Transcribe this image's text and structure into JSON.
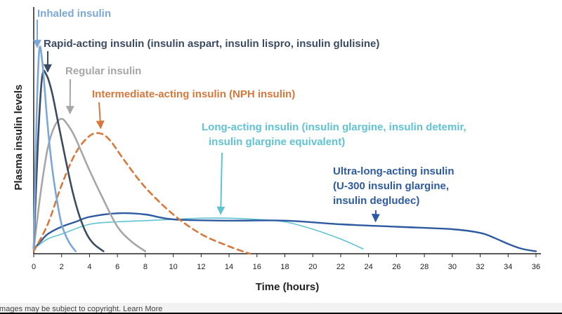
{
  "caption": "Images may be subject to copyright. Learn More",
  "chart_data": {
    "type": "line",
    "title": "",
    "xlabel": "Time (hours)",
    "ylabel": "Plasma insulin levels",
    "xlim": [
      0,
      36
    ],
    "ylim": [
      0,
      1
    ],
    "grid": false,
    "x_ticks": [
      0,
      2,
      4,
      6,
      8,
      10,
      12,
      14,
      16,
      18,
      20,
      22,
      24,
      26,
      28,
      30,
      32,
      34,
      36
    ],
    "colors": {
      "inhaled": "#7ba7d9",
      "rapid": "#3b4a63",
      "regular": "#a6a6a6",
      "nph": "#d9773a",
      "long": "#5fc3d4",
      "ultra": "#2d5aa0"
    },
    "series": [
      {
        "key": "inhaled",
        "x": [
          0,
          0.2,
          0.4,
          0.6,
          0.8,
          1.0,
          1.3,
          1.6,
          2.0,
          2.5,
          3.0
        ],
        "y": [
          0.02,
          0.55,
          0.83,
          0.79,
          0.66,
          0.52,
          0.36,
          0.24,
          0.12,
          0.05,
          0.01
        ]
      },
      {
        "key": "rapid",
        "x": [
          0,
          0.3,
          0.6,
          0.9,
          1.3,
          1.8,
          2.3,
          2.8,
          3.3,
          3.8,
          4.3,
          5.0
        ],
        "y": [
          0.02,
          0.45,
          0.72,
          0.73,
          0.66,
          0.52,
          0.38,
          0.25,
          0.15,
          0.08,
          0.04,
          0.01
        ]
      },
      {
        "key": "regular",
        "x": [
          0,
          0.5,
          1.0,
          1.5,
          2.0,
          2.5,
          3.0,
          4.0,
          5.0,
          6.0,
          7.0,
          8.0
        ],
        "y": [
          0.02,
          0.25,
          0.43,
          0.52,
          0.55,
          0.52,
          0.47,
          0.34,
          0.22,
          0.11,
          0.05,
          0.01
        ]
      },
      {
        "key": "nph",
        "x": [
          0,
          1,
          2,
          3,
          4,
          4.8,
          5.5,
          6.5,
          8,
          10,
          12,
          14,
          15.5
        ],
        "y": [
          0.01,
          0.12,
          0.28,
          0.41,
          0.48,
          0.49,
          0.46,
          0.38,
          0.27,
          0.16,
          0.08,
          0.03,
          0.0
        ]
      },
      {
        "key": "long",
        "x": [
          0,
          1,
          2,
          4,
          6,
          8,
          10,
          12,
          14,
          16,
          18,
          20,
          22,
          23.6
        ],
        "y": [
          0.02,
          0.06,
          0.08,
          0.12,
          0.13,
          0.135,
          0.14,
          0.145,
          0.145,
          0.14,
          0.13,
          0.1,
          0.06,
          0.02
        ]
      },
      {
        "key": "ultra",
        "x": [
          0,
          0.5,
          1,
          2,
          3,
          4,
          6,
          8,
          10,
          14,
          18,
          22,
          26,
          30,
          32,
          33,
          34,
          35,
          36
        ],
        "y": [
          0.02,
          0.05,
          0.08,
          0.11,
          0.13,
          0.15,
          0.165,
          0.16,
          0.14,
          0.135,
          0.135,
          0.12,
          0.11,
          0.1,
          0.085,
          0.065,
          0.04,
          0.02,
          0.01
        ]
      }
    ],
    "annotations": [
      {
        "key": "inhaled",
        "lines": [
          "Inhaled insulin"
        ],
        "arrow_x": 0.25,
        "arrow_y": 0.83
      },
      {
        "key": "rapid",
        "lines": [
          "Rapid-acting insulin (insulin aspart, insulin lispro, insulin glulisine)"
        ],
        "arrow_x": 1.0,
        "arrow_y": 0.73
      },
      {
        "key": "regular",
        "lines": [
          "Regular insulin"
        ],
        "arrow_x": 2.6,
        "arrow_y": 0.56
      },
      {
        "key": "nph",
        "lines": [
          "Intermediate-acting insulin (NPH insulin)"
        ],
        "arrow_x": 4.8,
        "arrow_y": 0.5
      },
      {
        "key": "long",
        "lines": [
          "Long-acting insulin (insulin glargine, insulin detemir,",
          "insulin glargine equivalent)"
        ],
        "arrow_x": 13.4,
        "arrow_y": 0.15
      },
      {
        "key": "ultra",
        "lines": [
          "Ultra-long-acting insulin",
          "(U-300 insulin glargine,",
          "insulin degludec)"
        ],
        "arrow_x": 24.5,
        "arrow_y": 0.12
      }
    ]
  }
}
